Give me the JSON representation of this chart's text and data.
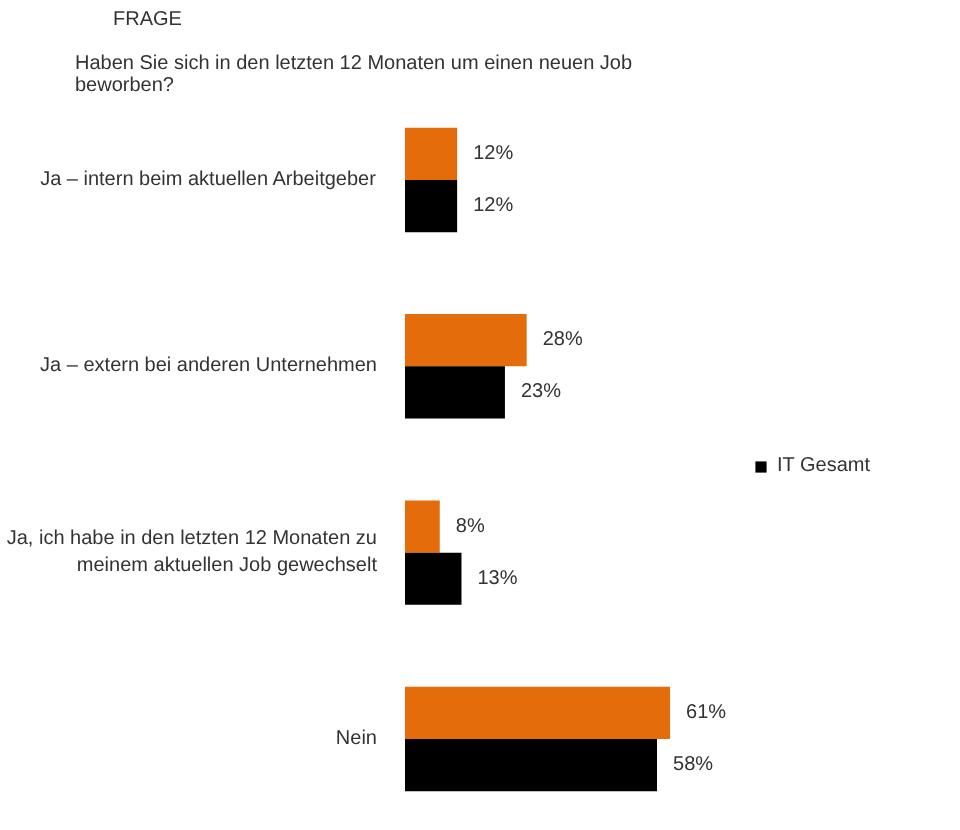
{
  "chart_data": {
    "type": "bar",
    "orientation": "horizontal",
    "title": "FRAGE",
    "subtitle": "Haben Sie sich in den letzten 12 Monaten um einen neuen Job beworben?",
    "categories": [
      "Ja – intern beim aktuellen Arbeitgeber",
      "Ja – extern bei anderen Unternehmen",
      "Ja, ich habe in den letzten 12 Monaten zu meinem aktuellen Job gewechselt",
      "Nein"
    ],
    "series": [
      {
        "color": "#e46c0a",
        "values": [
          12,
          28,
          8,
          61
        ],
        "value_labels": [
          "12%",
          "28%",
          "8%",
          "61%"
        ]
      },
      {
        "name": "IT Gesamt",
        "color": "#000000",
        "values": [
          12,
          23,
          13,
          58
        ],
        "value_labels": [
          "12%",
          "23%",
          "13%",
          "58%"
        ]
      }
    ],
    "legend": "right",
    "tick_labels": "y"
  }
}
